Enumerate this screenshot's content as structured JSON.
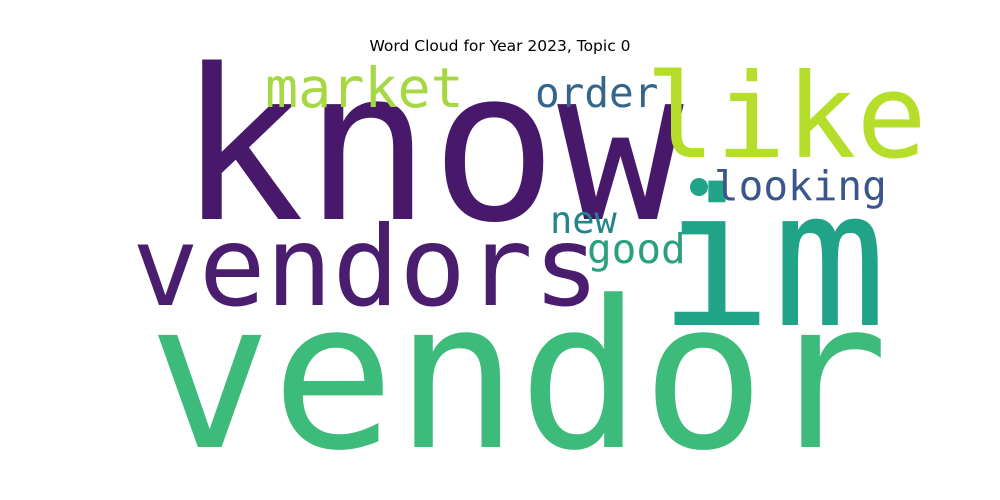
{
  "title": "Word Cloud for Year 2023, Topic 0",
  "words": [
    {
      "text": "vendor",
      "color": "#3dbb7a"
    },
    {
      "text": "know",
      "color": "#48186a"
    },
    {
      "text": "vendors",
      "color": "#4a1d6e"
    },
    {
      "text": "im",
      "color": "#20a386"
    },
    {
      "text": "like",
      "color": "#b5de2b"
    },
    {
      "text": "market",
      "color": "#a6d843"
    },
    {
      "text": "order",
      "color": "#33658d"
    },
    {
      "text": "looking",
      "color": "#3a568c"
    },
    {
      "text": "new",
      "color": "#25838e"
    },
    {
      "text": "good",
      "color": "#2aa07f"
    }
  ],
  "dot_color": "#20a386"
}
